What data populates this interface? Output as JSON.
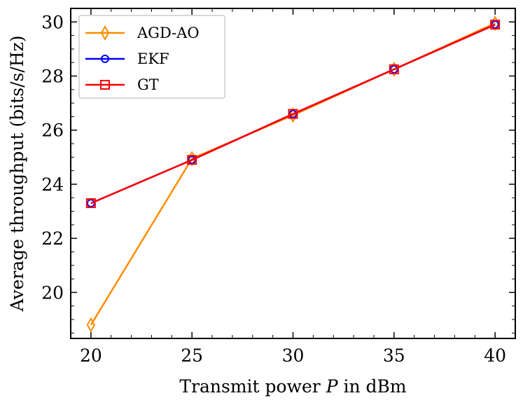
{
  "chart_data": {
    "type": "line",
    "xlabel": "Transmit power P in dBm",
    "xlabel_parts": [
      "Transmit power ",
      "P",
      " in dBm"
    ],
    "ylabel": "Average throughput (bits/s/Hz)",
    "xlim": [
      19,
      41
    ],
    "ylim": [
      18.3,
      30.5
    ],
    "xticks": [
      20,
      25,
      30,
      35,
      40
    ],
    "yticks": [
      20,
      22,
      24,
      26,
      28,
      30
    ],
    "x": [
      20,
      25,
      30,
      35,
      40
    ],
    "legend_position": "top-left",
    "series": [
      {
        "name": "AGD-AO",
        "color": "#ff8c00",
        "marker": "diamond",
        "values": [
          18.8,
          24.95,
          26.55,
          28.25,
          29.95
        ]
      },
      {
        "name": "EKF",
        "color": "#0000ff",
        "marker": "circle",
        "values": [
          23.3,
          24.9,
          26.6,
          28.25,
          29.9
        ]
      },
      {
        "name": "GT",
        "color": "#ff0000",
        "marker": "square",
        "values": [
          23.3,
          24.9,
          26.6,
          28.25,
          29.9
        ]
      }
    ]
  }
}
